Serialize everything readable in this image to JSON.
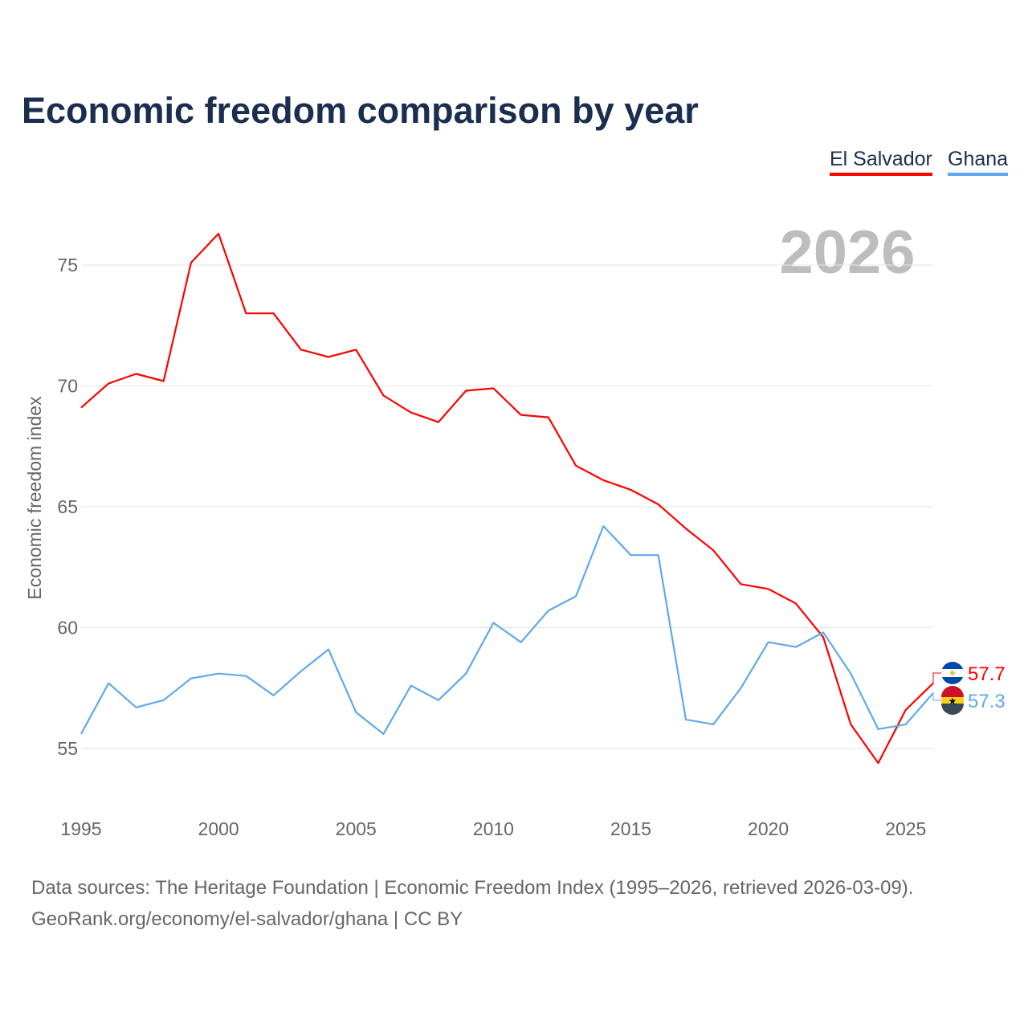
{
  "chart_data": {
    "type": "line",
    "title": "Economic freedom comparison by year",
    "xlabel": "",
    "ylabel": "Economic freedom index",
    "current_year_label": "2026",
    "x": [
      1995,
      1996,
      1997,
      1998,
      1999,
      2000,
      2001,
      2002,
      2003,
      2004,
      2005,
      2006,
      2007,
      2008,
      2009,
      2010,
      2011,
      2012,
      2013,
      2014,
      2015,
      2016,
      2017,
      2018,
      2019,
      2020,
      2021,
      2022,
      2023,
      2024,
      2025,
      2026
    ],
    "xticks": [
      "1995",
      "2000",
      "2005",
      "2010",
      "2015",
      "2020",
      "2025"
    ],
    "yticks": [
      "55",
      "60",
      "65",
      "70",
      "75"
    ],
    "xlim": [
      1995,
      2026
    ],
    "ylim": [
      53,
      77
    ],
    "grid": true,
    "legend_position": "top-right",
    "series": [
      {
        "name": "El Salvador",
        "color": "#ff0000",
        "end_label": "57.7",
        "values": [
          69.1,
          70.1,
          70.5,
          70.2,
          75.1,
          76.3,
          73.0,
          73.0,
          71.5,
          71.2,
          71.5,
          69.6,
          68.9,
          68.5,
          69.8,
          69.9,
          68.8,
          68.7,
          66.7,
          66.1,
          65.7,
          65.1,
          64.1,
          63.2,
          61.8,
          61.6,
          61.0,
          59.6,
          56.0,
          54.4,
          56.6,
          57.7
        ]
      },
      {
        "name": "Ghana",
        "color": "#5fa8ef",
        "end_label": "57.3",
        "values": [
          55.6,
          57.7,
          56.7,
          57.0,
          57.9,
          58.1,
          58.0,
          57.2,
          58.2,
          59.1,
          56.5,
          55.6,
          57.6,
          57.0,
          58.1,
          60.2,
          59.4,
          60.7,
          61.3,
          64.2,
          63.0,
          63.0,
          56.2,
          56.0,
          57.5,
          59.4,
          59.2,
          59.8,
          58.1,
          55.8,
          56.0,
          57.3
        ]
      }
    ]
  },
  "footer": {
    "line1": "Data sources: The Heritage Foundation | Economic Freedom Index (1995–2026, retrieved 2026-03-09).",
    "line2": "GeoRank.org/economy/el-salvador/ghana | CC BY"
  }
}
